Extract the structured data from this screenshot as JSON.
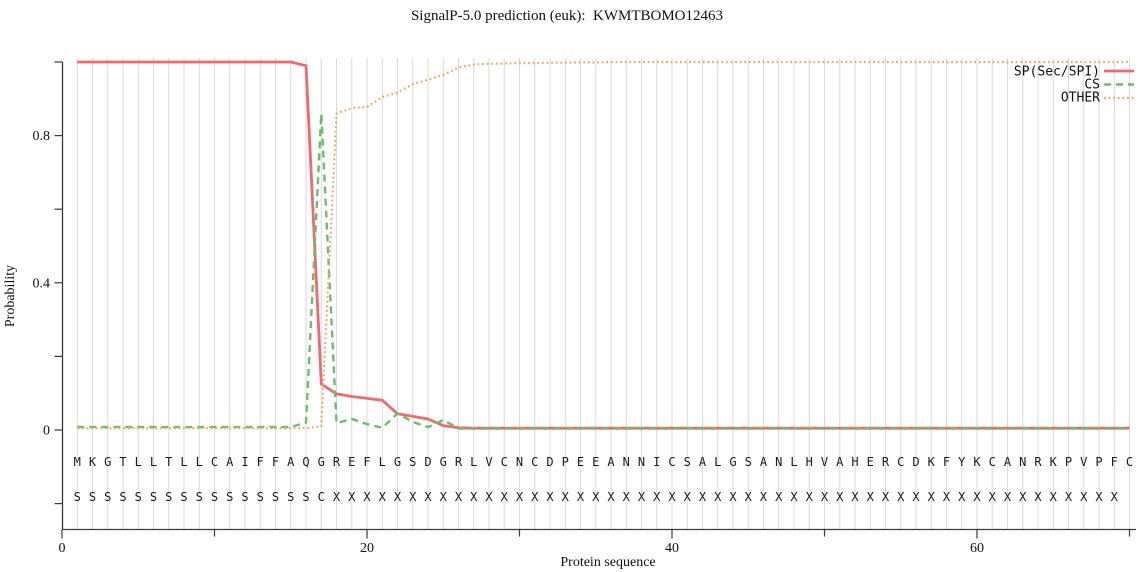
{
  "title": "SignalP-5.0 prediction (euk):  KWMTBOMO12463",
  "axes": {
    "y_label": "Probability",
    "x_label": "Protein sequence",
    "y_major_ticks": [
      0,
      0.4,
      0.8
    ],
    "y_major_tick_labels": [
      "0",
      "0.4",
      "0.8"
    ],
    "y_minor_ticks": [
      -0.2,
      0.2,
      0.6,
      1.0
    ],
    "x_major_ticks": [
      0,
      20,
      40,
      60
    ],
    "x_major_tick_labels": [
      "0",
      "20",
      "40",
      "60"
    ],
    "x_minor_ticks": [
      10,
      30,
      50,
      70
    ]
  },
  "legend": [
    {
      "label": "SP(Sec/SPI)",
      "color": "#f0696e",
      "style": "solid"
    },
    {
      "label": "CS",
      "color": "#6abf69",
      "style": "dashed"
    },
    {
      "label": "OTHER",
      "color": "#f4a95f",
      "style": "dotted"
    }
  ],
  "sequence": {
    "residues": "MKGTLLTLLCAIFFAQGREFLGSDGRLVCNCDPEEANNICSALGSANLHVAHERCDKFYKCANRKPVPFC",
    "annotation": "SSSSSSSSSSSSSSSSCXXXXXXXXXXXXXXXXXXXXXXXXXXXXXXXXXXXXXXXXXXXXXXXXXXXX"
  },
  "colors": {
    "grid": "#d9d9d9",
    "axis": "#3a3a3a",
    "text": "#111111",
    "letters": "#1a1a1a"
  },
  "chart_data": {
    "type": "line",
    "title": "SignalP-5.0 prediction (euk):  KWMTBOMO12463",
    "xlabel": "Protein sequence",
    "ylabel": "Probability",
    "xlim": [
      0,
      70.5
    ],
    "ylim": [
      0,
      1.0
    ],
    "grid": "vertical-per-residue",
    "legend_position": "top-right",
    "x": [
      1,
      2,
      3,
      4,
      5,
      6,
      7,
      8,
      9,
      10,
      11,
      12,
      13,
      14,
      15,
      16,
      17,
      18,
      19,
      20,
      21,
      22,
      23,
      24,
      25,
      26,
      27,
      28,
      29,
      30,
      31,
      32,
      33,
      34,
      35,
      36,
      37,
      38,
      39,
      40,
      41,
      42,
      43,
      44,
      45,
      46,
      47,
      48,
      49,
      50,
      51,
      52,
      53,
      54,
      55,
      56,
      57,
      58,
      59,
      60,
      61,
      62,
      63,
      64,
      65,
      66,
      67,
      68,
      69,
      70
    ],
    "series": [
      {
        "name": "SP(Sec/SPI)",
        "color": "#f0696e",
        "dash": "solid",
        "values": [
          1.0,
          1.0,
          1.0,
          1.0,
          1.0,
          1.0,
          1.0,
          1.0,
          1.0,
          1.0,
          1.0,
          1.0,
          1.0,
          1.0,
          1.0,
          0.99,
          0.125,
          0.098,
          0.091,
          0.086,
          0.081,
          0.044,
          0.037,
          0.03,
          0.012,
          0.006,
          0.005,
          0.005,
          0.005,
          0.005,
          0.005,
          0.005,
          0.005,
          0.005,
          0.005,
          0.005,
          0.005,
          0.005,
          0.005,
          0.005,
          0.005,
          0.005,
          0.005,
          0.005,
          0.005,
          0.005,
          0.005,
          0.005,
          0.005,
          0.005,
          0.005,
          0.005,
          0.005,
          0.005,
          0.005,
          0.005,
          0.005,
          0.005,
          0.005,
          0.005,
          0.005,
          0.005,
          0.005,
          0.005,
          0.005,
          0.005,
          0.005,
          0.005,
          0.005,
          0.005
        ]
      },
      {
        "name": "CS",
        "color": "#6abf69",
        "dash": "dashed",
        "values": [
          0.008,
          0.008,
          0.008,
          0.008,
          0.008,
          0.008,
          0.008,
          0.008,
          0.008,
          0.008,
          0.008,
          0.008,
          0.008,
          0.008,
          0.008,
          0.02,
          0.86,
          0.019,
          0.03,
          0.016,
          0.006,
          0.045,
          0.022,
          0.008,
          0.027,
          0.004,
          0.004,
          0.004,
          0.004,
          0.004,
          0.004,
          0.004,
          0.004,
          0.004,
          0.004,
          0.004,
          0.004,
          0.004,
          0.004,
          0.004,
          0.004,
          0.004,
          0.004,
          0.004,
          0.004,
          0.004,
          0.004,
          0.004,
          0.004,
          0.004,
          0.004,
          0.004,
          0.004,
          0.004,
          0.004,
          0.004,
          0.004,
          0.004,
          0.004,
          0.004,
          0.004,
          0.004,
          0.004,
          0.004,
          0.004,
          0.004,
          0.004,
          0.004,
          0.004,
          0.004
        ]
      },
      {
        "name": "OTHER",
        "color": "#f4a95f",
        "dash": "dotted",
        "values": [
          0.005,
          0.005,
          0.005,
          0.005,
          0.005,
          0.005,
          0.005,
          0.005,
          0.005,
          0.005,
          0.005,
          0.005,
          0.005,
          0.005,
          0.005,
          0.005,
          0.01,
          0.86,
          0.875,
          0.878,
          0.905,
          0.917,
          0.94,
          0.952,
          0.965,
          0.985,
          0.993,
          0.995,
          0.996,
          0.997,
          0.997,
          0.998,
          0.998,
          0.999,
          0.999,
          1.0,
          1.0,
          1.0,
          1.0,
          1.0,
          1.0,
          1.0,
          1.0,
          1.0,
          1.0,
          1.0,
          1.0,
          1.0,
          1.0,
          1.0,
          1.0,
          1.0,
          1.0,
          1.0,
          1.0,
          1.0,
          1.0,
          1.0,
          1.0,
          1.0,
          1.0,
          1.0,
          1.0,
          1.0,
          1.0,
          1.0,
          1.0,
          1.0,
          1.0,
          1.0
        ]
      }
    ]
  }
}
